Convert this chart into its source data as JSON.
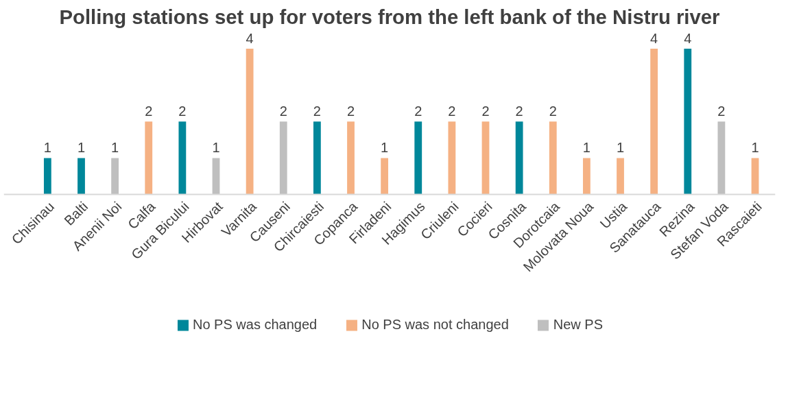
{
  "chart_data": {
    "type": "bar",
    "title": "Polling stations set up for voters from the left bank of the Nistru river",
    "categories": [
      "Chisinau",
      "Balti",
      "Anenii Noi",
      "Calfa",
      "Gura Bicului",
      "Hirbovat",
      "Varnita",
      "Causeni",
      "Chircaiesti",
      "Copanca",
      "Firladeni",
      "Hagimus",
      "Criuleni",
      "Cocieri",
      "Cosnita",
      "Dorotcaia",
      "Molovata Noua",
      "Ustia",
      "Sanatauca",
      "Rezina",
      "Stefan Voda",
      "Rascaieti"
    ],
    "series": [
      {
        "name": "No PS was changed",
        "color": "#00879a",
        "values": [
          1,
          1,
          null,
          null,
          2,
          null,
          null,
          null,
          2,
          null,
          null,
          2,
          null,
          null,
          2,
          null,
          null,
          null,
          null,
          4,
          null,
          null
        ]
      },
      {
        "name": "No PS was not changed",
        "color": "#f5b183",
        "values": [
          null,
          null,
          null,
          2,
          null,
          null,
          4,
          null,
          null,
          2,
          1,
          null,
          2,
          2,
          null,
          2,
          1,
          1,
          4,
          null,
          null,
          1
        ]
      },
      {
        "name": "New PS",
        "color": "#bfbfbf",
        "values": [
          null,
          null,
          1,
          null,
          null,
          1,
          null,
          2,
          null,
          null,
          null,
          null,
          null,
          null,
          null,
          null,
          null,
          null,
          null,
          null,
          2,
          null
        ]
      }
    ],
    "stacked": true,
    "data_labels": true,
    "legend": "bottom",
    "grid": false
  }
}
